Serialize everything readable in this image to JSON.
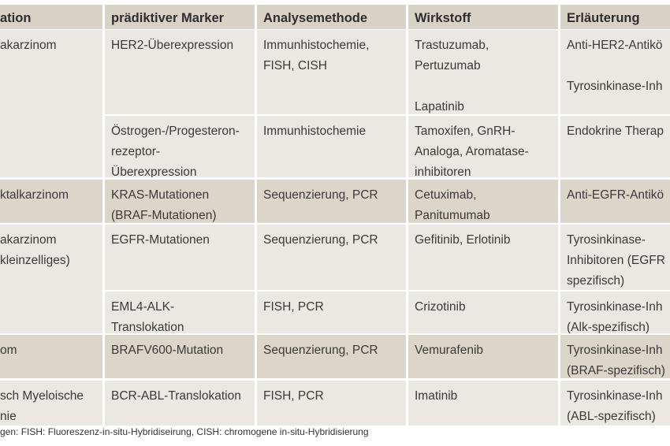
{
  "headers": [
    "ation",
    "prädiktiver Marker",
    "Analysemethode",
    "Wirkstoff",
    "Erläuterung"
  ],
  "rows": [
    {
      "indication": "akarzinom",
      "marker": "HER2-Überexpression",
      "method": "Immunhistochemie,\nFISH, CISH",
      "drug": "Trastuzumab,\nPertuzumab\n\nLapatinib",
      "note": "Anti-HER2-Antikö\n\nTyrosinkinase-Inh"
    },
    {
      "indication": "",
      "marker": "Östrogen-/Progesteron-\nrezeptor-\nÜberexpression",
      "method": "Immunhistochemie",
      "drug": "Tamoxifen, GnRH-\nAnaloga, Aromatase-\ninhibitoren",
      "note": "Endokrine Therap"
    },
    {
      "indication": "ktalkarzinom",
      "marker": "KRAS-Mutationen\n(BRAF-Mutationen)",
      "method": "Sequenzierung, PCR",
      "drug": "Cetuximab,\nPanitumumab",
      "note": "Anti-EGFR-Antikö"
    },
    {
      "indication": "akarzinom\nkleinzelliges)",
      "marker": "EGFR-Mutationen",
      "method": "Sequenzierung, PCR",
      "drug": "Gefitinib, Erlotinib",
      "note": "Tyrosinkinase-\nInhibitoren (EGFR\nspezifisch)"
    },
    {
      "indication": "",
      "marker": "EML4-ALK-\nTranslokation",
      "method": "FISH, PCR",
      "drug": "Crizotinib",
      "note": "Tyrosinkinase-Inh\n(Alk-spezifisch)"
    },
    {
      "indication": "om",
      "marker": "BRAFV600-Mutation",
      "method": "Sequenzierung, PCR",
      "drug": "Vemurafenib",
      "note": "Tyrosinkinase-Inh\n(BRAF-spezifisch)"
    },
    {
      "indication": "sch Myeloische\nnie",
      "marker": "BCR-ABL-Translokation",
      "method": "FISH, PCR",
      "drug": "Imatinib",
      "note": "Tyrosinkinase-Inh\n(ABL-spezifisch)"
    }
  ],
  "footnote": "gen: FISH: Fluoreszenz-in-situ-Hybridiseirung, CISH: chromogene in-situ-Hybridisierung",
  "colors": {
    "header": "#d9d2c7",
    "row_light": "#ebe8e3",
    "row_dark": "#dcd5ca"
  }
}
